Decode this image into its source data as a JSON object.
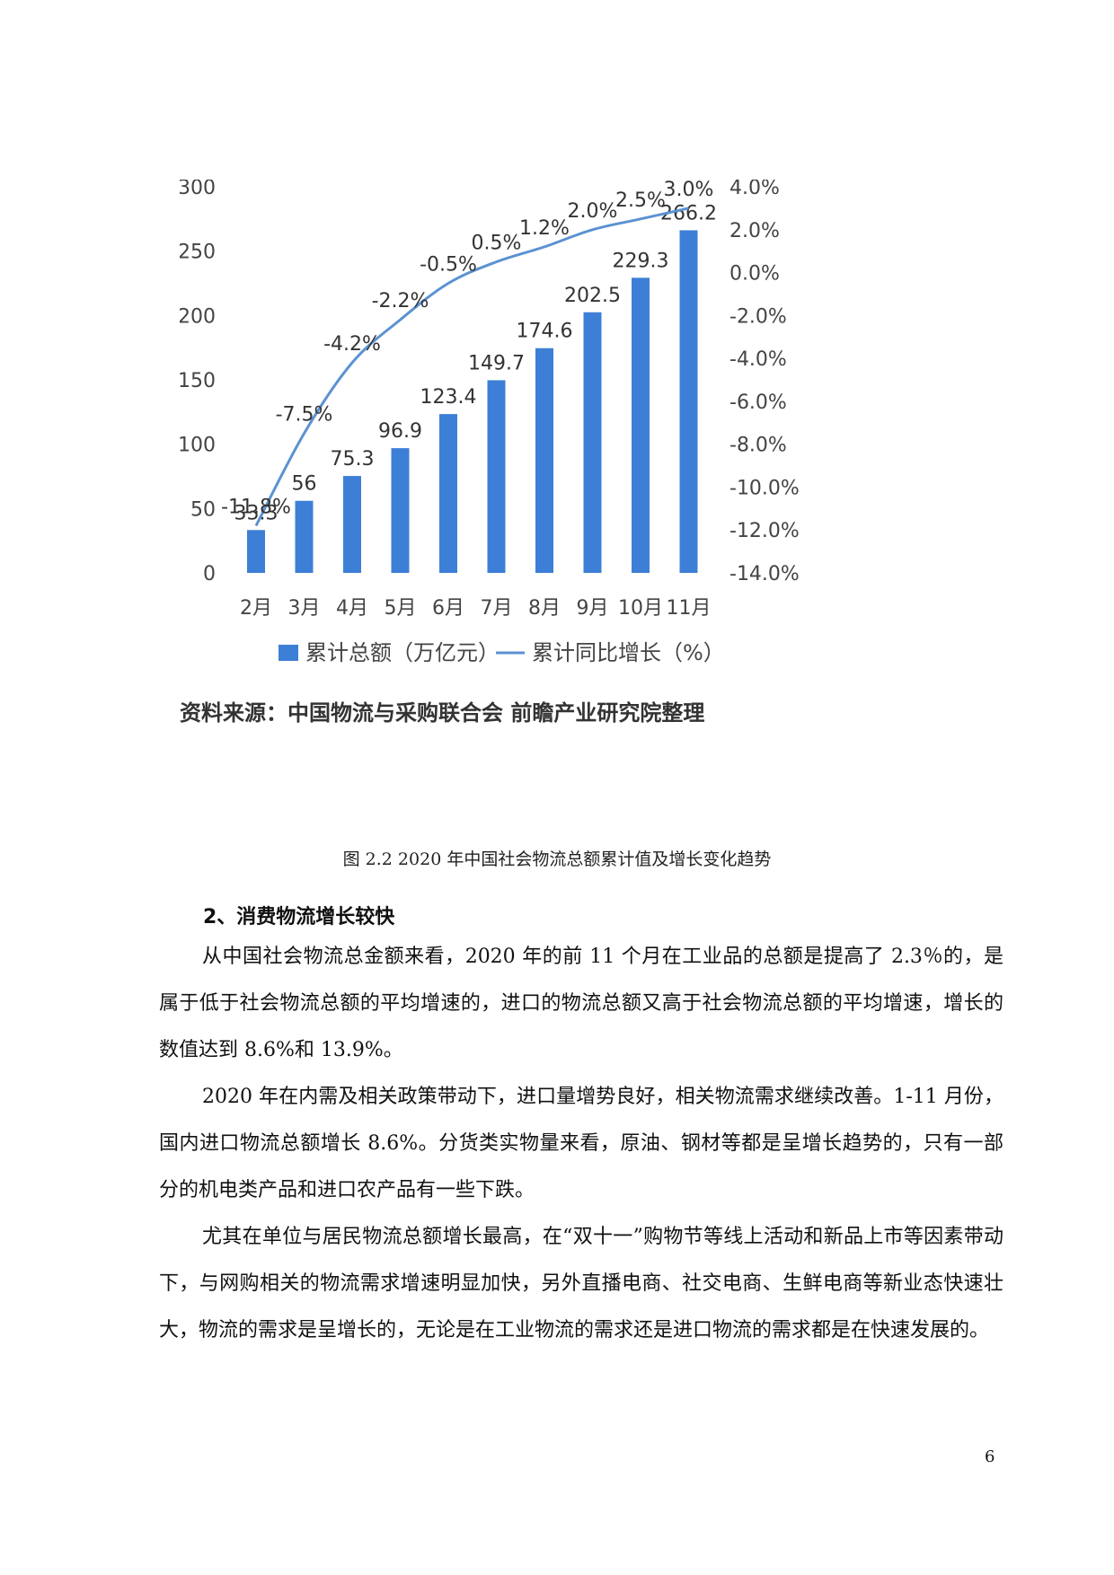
{
  "chart_data": {
    "type": "bar",
    "categories": [
      "2月",
      "3月",
      "4月",
      "5月",
      "6月",
      "7月",
      "8月",
      "9月",
      "10月",
      "11月"
    ],
    "series": [
      {
        "name": "累计总额（万亿元）",
        "type": "bar",
        "axis": "left",
        "values": [
          33.3,
          56,
          75.3,
          96.9,
          123.4,
          149.7,
          174.6,
          202.5,
          229.3,
          266.2
        ]
      },
      {
        "name": "累计同比增长（%）",
        "type": "line",
        "axis": "right",
        "values": [
          -11.8,
          -7.5,
          -4.2,
          -2.2,
          -0.5,
          0.5,
          1.2,
          2.0,
          2.5,
          3.0
        ]
      }
    ],
    "value_labels": [
      "33.3",
      "56",
      "75.3",
      "96.9",
      "123.4",
      "149.7",
      "174.6",
      "202.5",
      "229.3",
      "266.2"
    ],
    "pct_labels": [
      "-11.8%",
      "-7.5%",
      "-4.2%",
      "-2.2%",
      "-0.5%",
      "0.5%",
      "1.2%",
      "2.0%",
      "2.5%",
      "3.0%"
    ],
    "ylim_left": [
      0,
      300
    ],
    "yticks_left": [
      "0",
      "50",
      "100",
      "150",
      "200",
      "250",
      "300"
    ],
    "ylim_right": [
      -14,
      4
    ],
    "yticks_right": [
      "-14.0%",
      "-12.0%",
      "-10.0%",
      "-8.0%",
      "-6.0%",
      "-4.0%",
      "-2.0%",
      "0.0%",
      "2.0%",
      "4.0%"
    ],
    "legend_position": "bottom",
    "colors": {
      "bar": "#3d7fd6",
      "line": "#5b92d2"
    },
    "source_note": "资料来源：中国物流与采购联合会 前瞻产业研究院整理"
  },
  "caption": "图 2.2 2020 年中国社会物流总额累计值及增长变化趋势",
  "section_heading": "2、消费物流增长较快",
  "paragraphs": [
    "从中国社会物流总金额来看，2020 年的前 11 个月在工业品的总额是提高了 2.3％的，是属于低于社会物流总额的平均增速的，进口的物流总额又高于社会物流总额的平均增速，增长的数值达到 8.6%和 13.9%。",
    "2020 年在内需及相关政策带动下，进口量增势良好，相关物流需求继续改善。1-11 月份，国内进口物流总额增长 8.6%。分货类实物量来看，原油、钢材等都是呈增长趋势的，只有一部分的机电类产品和进口农产品有一些下跌。",
    "尤其在单位与居民物流总额增长最高，在“双十一”购物节等线上活动和新品上市等因素带动下，与网购相关的物流需求增速明显加快，另外直播电商、社交电商、生鲜电商等新业态快速壮大，物流的需求是呈增长的，无论是在工业物流的需求还是进口物流的需求都是在快速发展的。"
  ],
  "page_number": "6"
}
